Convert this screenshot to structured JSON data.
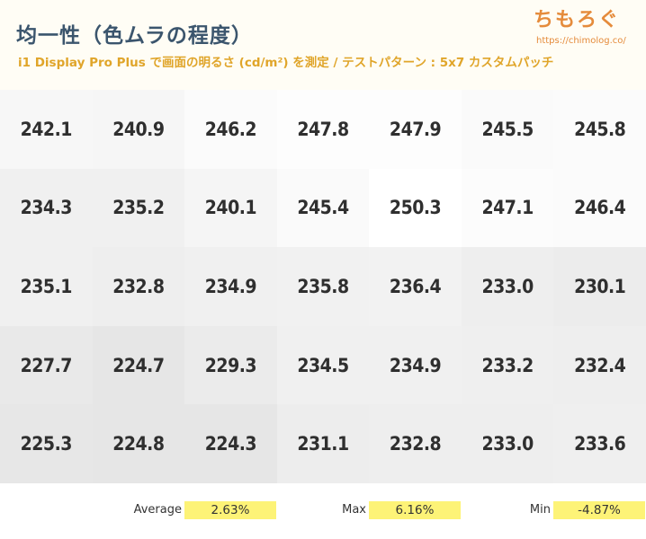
{
  "header": {
    "title": "均一性（色ムラの程度）",
    "subtitle": "i1 Display Pro Plus で画面の明るさ (cd/m²) を測定 / テストパターン : 5x7 カスタムパッチ",
    "brand_name": "ちもろぐ",
    "brand_url": "https://chimolog.co/"
  },
  "chart_data": {
    "type": "heatmap",
    "rows": 5,
    "cols": 7,
    "unit": "cd/m²",
    "values": [
      [
        "242.1",
        "240.9",
        "246.2",
        "247.8",
        "247.9",
        "245.5",
        "245.8"
      ],
      [
        "234.3",
        "235.2",
        "240.1",
        "245.4",
        "250.3",
        "247.1",
        "246.4"
      ],
      [
        "235.1",
        "232.8",
        "234.9",
        "235.8",
        "236.4",
        "233.0",
        "230.1"
      ],
      [
        "227.7",
        "224.7",
        "229.3",
        "234.5",
        "234.9",
        "233.2",
        "232.4"
      ],
      [
        "225.3",
        "224.8",
        "224.3",
        "231.1",
        "232.8",
        "233.0",
        "233.6"
      ]
    ],
    "color_scale": {
      "min_value": 224.3,
      "max_value": 250.3,
      "min_color": "#e6e6e6",
      "max_color": "#ffffff"
    }
  },
  "stats": {
    "average_label": "Average",
    "average_value": "2.63%",
    "max_label": "Max",
    "max_value": "6.16%",
    "min_label": "Min",
    "min_value": "-4.87%",
    "highlight_color": "#fdf377"
  }
}
